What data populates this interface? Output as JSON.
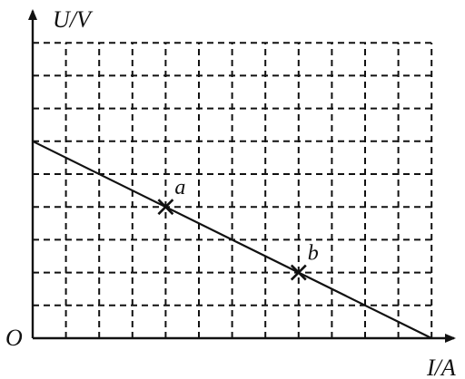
{
  "chart_data": {
    "type": "line",
    "title": "",
    "xlabel": "I/A",
    "ylabel": "U/V",
    "origin_label": "O",
    "grid": true,
    "xlim": [
      0,
      12
    ],
    "ylim": [
      0,
      9
    ],
    "series": [
      {
        "x": [
          0,
          12
        ],
        "y": [
          6,
          0
        ]
      }
    ],
    "points": [
      {
        "label": "a",
        "x": 4,
        "y": 4
      },
      {
        "label": "b",
        "x": 8,
        "y": 2
      }
    ]
  }
}
